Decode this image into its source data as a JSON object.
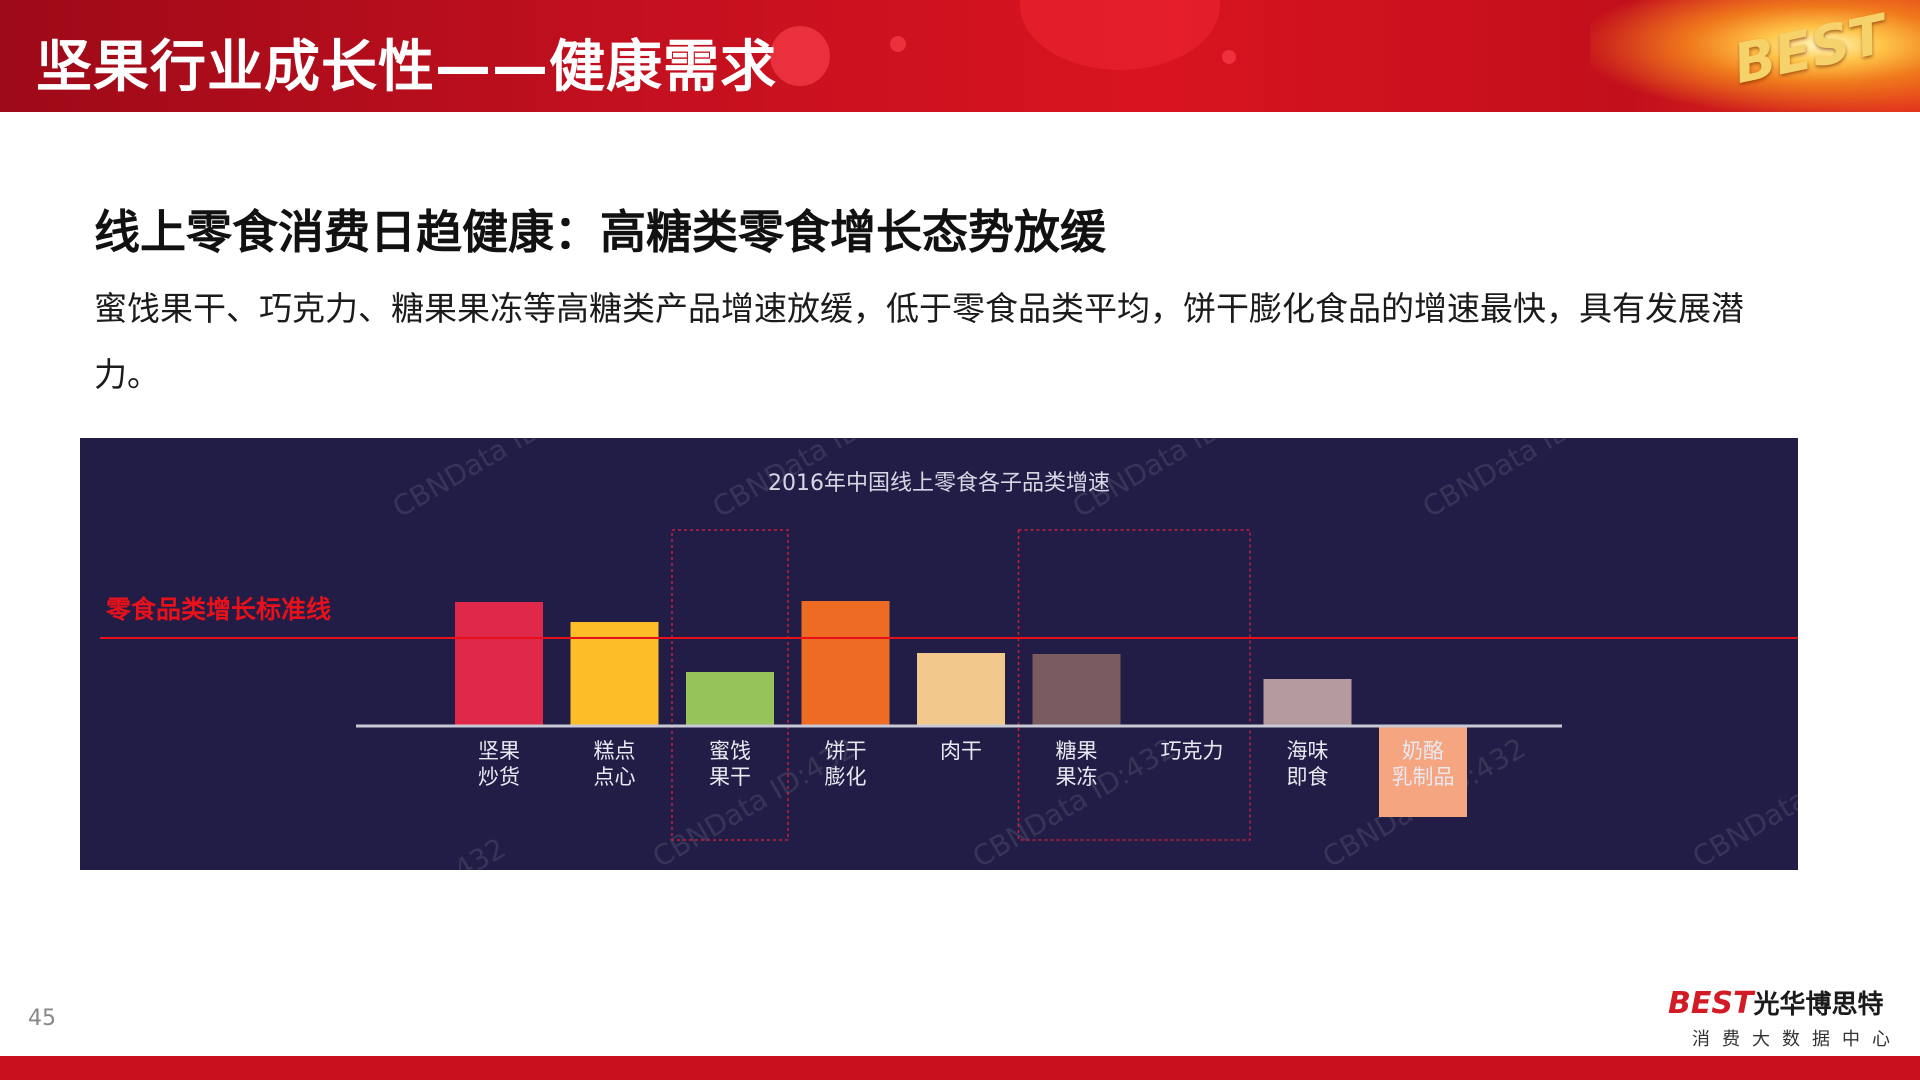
{
  "header": {
    "title": "坚果行业成长性——健康需求",
    "logo_text": "BEST"
  },
  "section": {
    "title": "线上零食消费日趋健康：高糖类零食增长态势放缓",
    "description": "蜜饯果干、巧克力、糖果果冻等高糖类产品增速放缓，低于零食品类平均，饼干膨化食品的增速最快，具有发展潜力。"
  },
  "chart_data": {
    "type": "bar",
    "title": "2016年中国线上零食各子品类增速",
    "categories": [
      "坚果炒货",
      "糕点点心",
      "蜜饯果干",
      "饼干膨化",
      "肉干",
      "糖果果冻",
      "巧克力",
      "海味即食",
      "奶酪乳制品"
    ],
    "category_lines": [
      [
        "坚果",
        "炒货"
      ],
      [
        "糕点",
        "点心"
      ],
      [
        "蜜饯",
        "果干"
      ],
      [
        "饼干",
        "膨化"
      ],
      [
        "肉干"
      ],
      [
        "糖果",
        "果冻"
      ],
      [
        "巧克力"
      ],
      [
        "海味",
        "即食"
      ],
      [
        "奶酪",
        "乳制品"
      ]
    ],
    "values": [
      124,
      104,
      54,
      125,
      73,
      72,
      0,
      47,
      -91
    ],
    "colors": [
      "#e0294a",
      "#fdbd28",
      "#96c35a",
      "#ee6b24",
      "#f3c88d",
      "#7a5c60",
      "#211d46",
      "#b59a9e",
      "#f5a57f"
    ],
    "reference_line": {
      "label": "零食品类增长标准线",
      "value": 88,
      "color": "#e8101a"
    },
    "highlight_groups": [
      [
        "蜜饯果干"
      ],
      [
        "糖果果冻",
        "巧克力"
      ]
    ],
    "watermark": "CBNData ID:432",
    "axis": {
      "y_visible": false,
      "grid": false
    },
    "background": "#211d46"
  },
  "footer": {
    "page_number": "45",
    "brand_en": "BEST",
    "brand_cn": "光华博思特",
    "brand_sub": "消费大数据中心"
  },
  "colors": {
    "primary_red": "#c8101e",
    "chart_bg": "#211d46"
  }
}
